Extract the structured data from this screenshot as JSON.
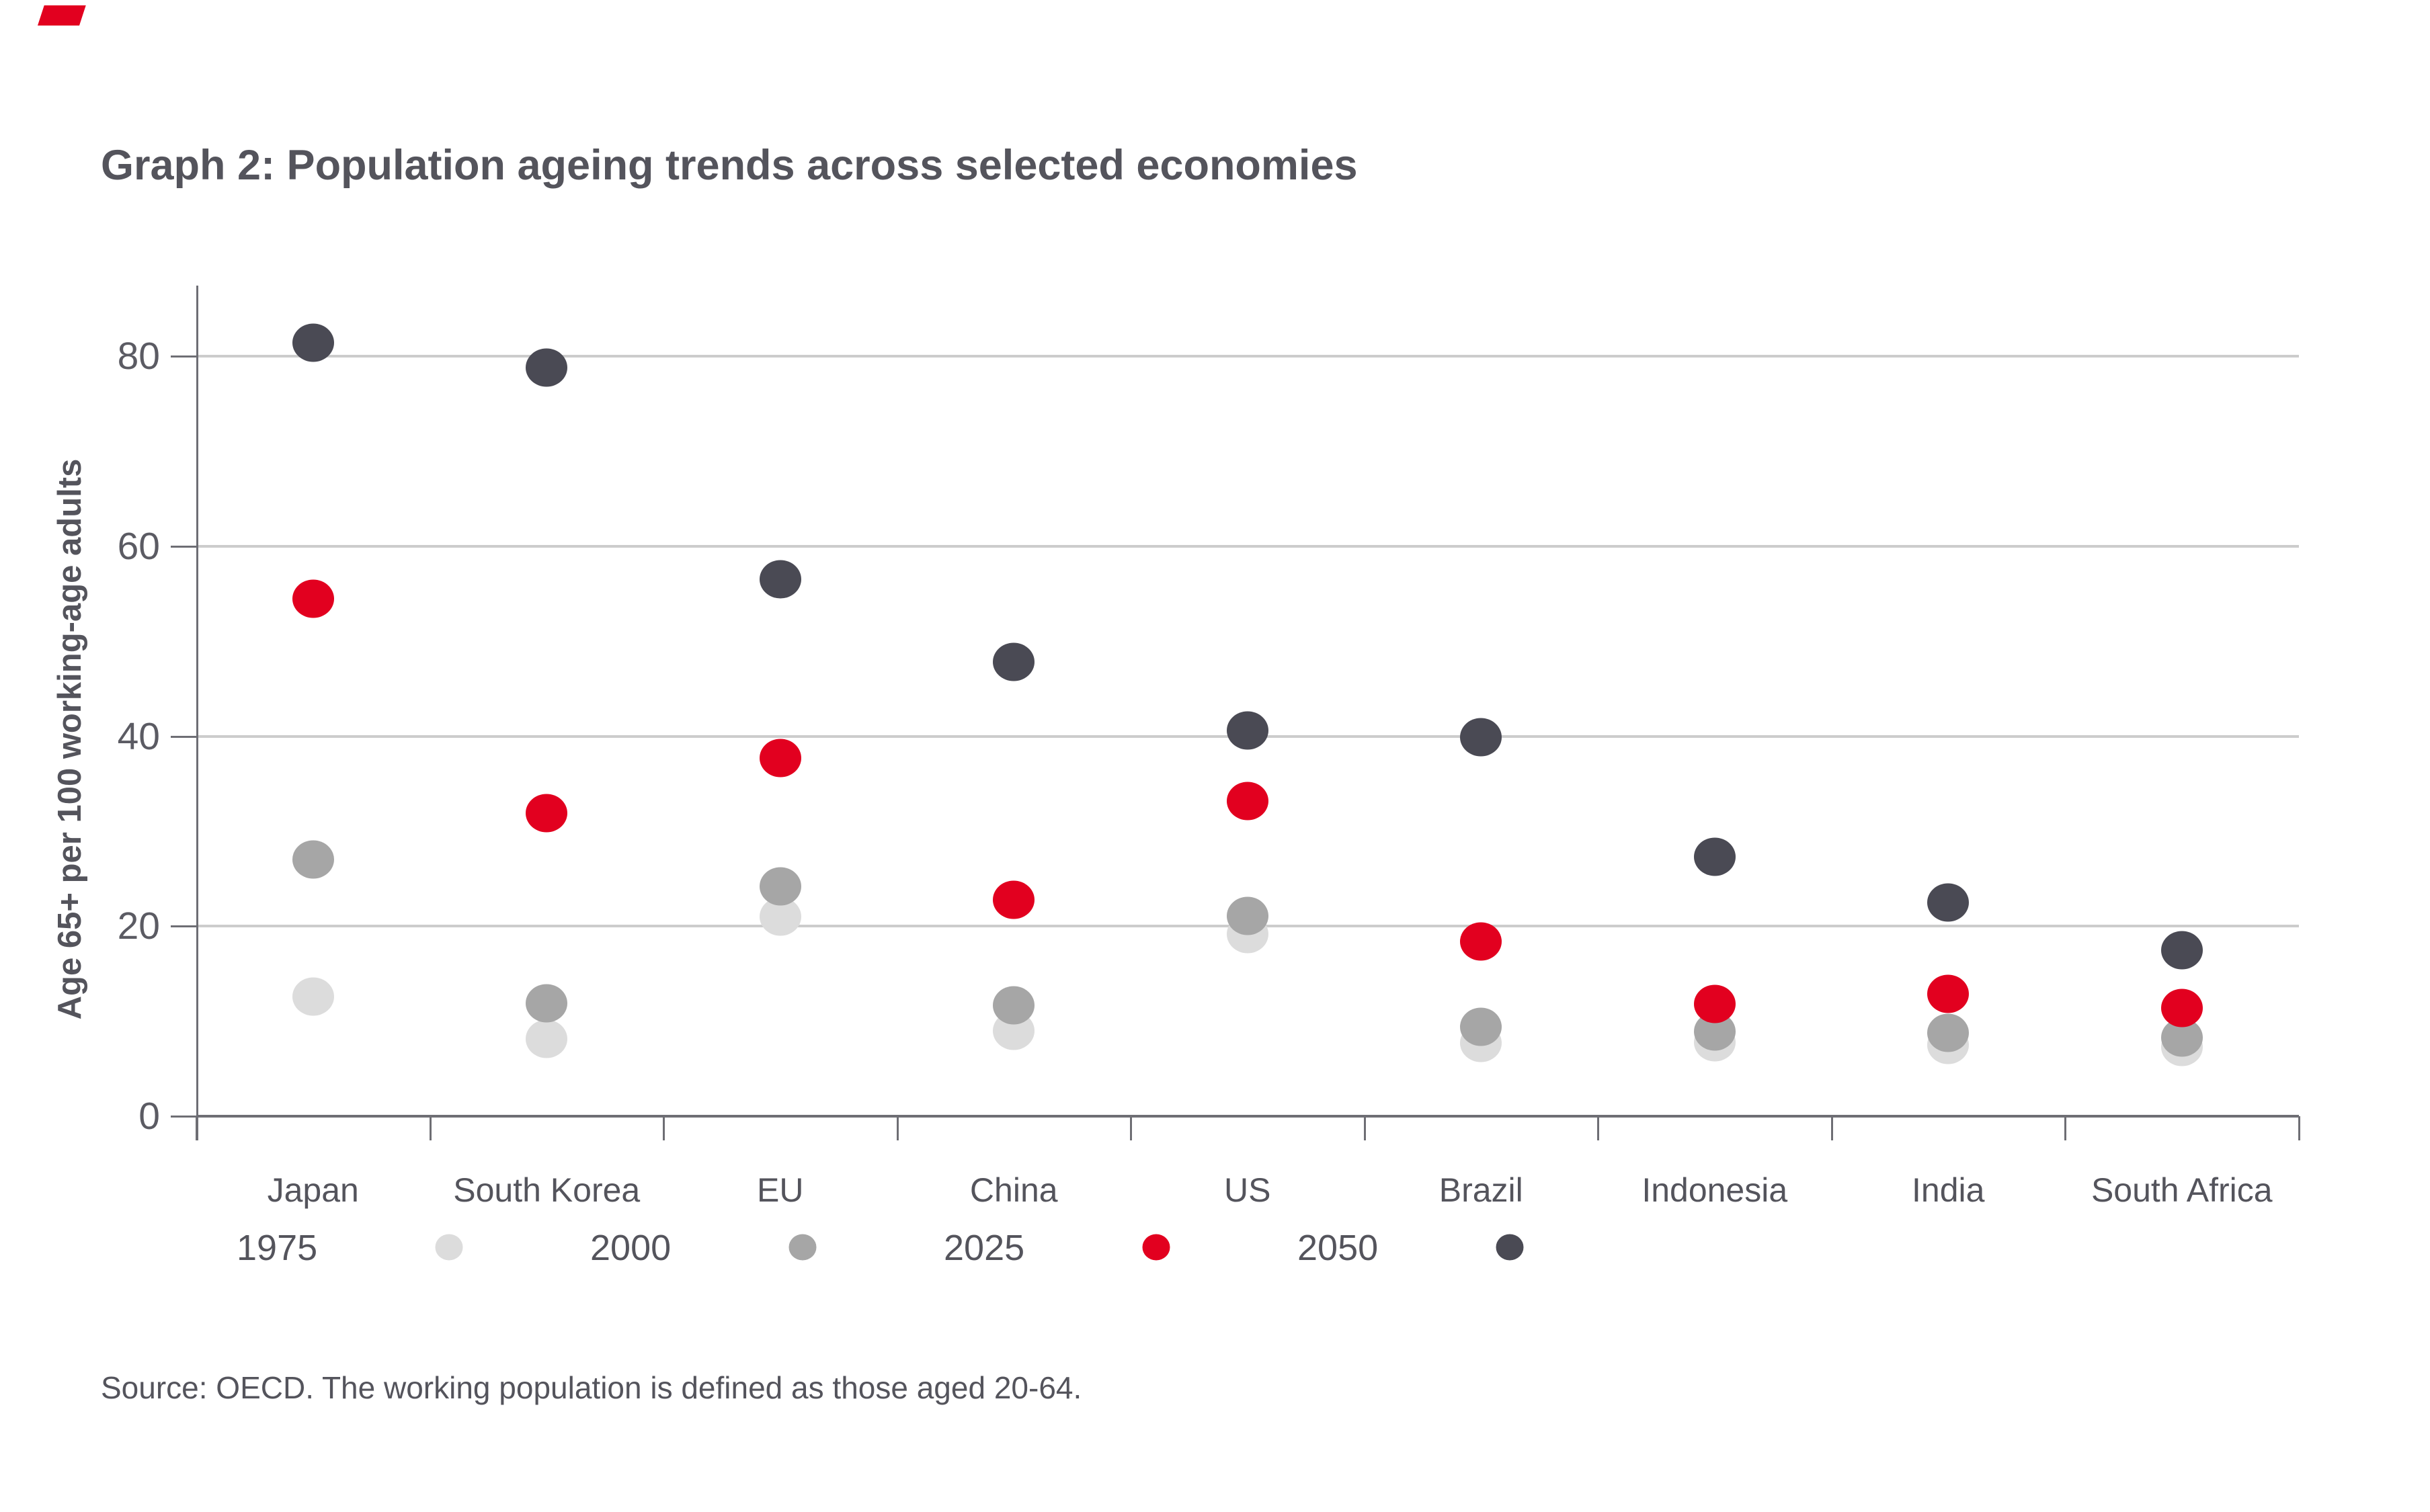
{
  "brand": {
    "mark_color": "#e2001f"
  },
  "title": "Graph 2: Population ageing trends across selected economies",
  "source": "Source: OECD. The working population is defined as those aged 20-64.",
  "chart_data": {
    "type": "scatter",
    "title": "Graph 2: Population ageing trends across selected economies",
    "xlabel": "",
    "ylabel": "Age 65+ per 100 working-age adults",
    "ylim": [
      0,
      87
    ],
    "yticks": [
      0,
      20,
      40,
      60,
      80
    ],
    "grid": "horizontal",
    "legend_position": "bottom",
    "categories": [
      "Japan",
      "South Korea",
      "EU",
      "China",
      "US",
      "Brazil",
      "Indonesia",
      "India",
      "South Africa"
    ],
    "series": [
      {
        "name": "1975",
        "color": "#dcdcdc",
        "values": [
          12.6,
          8.1,
          21.0,
          9.0,
          19.2,
          7.7,
          7.8,
          7.5,
          7.3
        ]
      },
      {
        "name": "2000",
        "color": "#a6a6a6",
        "values": [
          27.0,
          11.9,
          24.2,
          11.7,
          21.1,
          9.4,
          8.9,
          8.8,
          8.3
        ]
      },
      {
        "name": "2025",
        "color": "#e2001f",
        "values": [
          54.5,
          31.9,
          37.7,
          22.8,
          33.2,
          18.4,
          11.8,
          12.9,
          11.4
        ]
      },
      {
        "name": "2050",
        "color": "#4a4a54",
        "values": [
          81.4,
          78.8,
          56.5,
          47.8,
          40.6,
          39.9,
          27.3,
          22.5,
          17.5
        ]
      }
    ]
  },
  "legend": {
    "items": [
      {
        "label": "1975",
        "color": "#dcdcdc"
      },
      {
        "label": "2000",
        "color": "#a6a6a6"
      },
      {
        "label": "2025",
        "color": "#e2001f"
      },
      {
        "label": "2050",
        "color": "#4a4a54"
      }
    ]
  }
}
